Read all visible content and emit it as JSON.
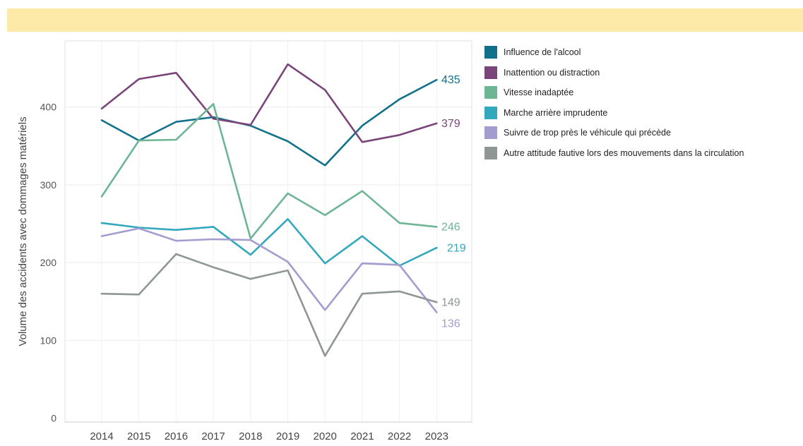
{
  "chart_data": {
    "type": "line",
    "xlabel": "",
    "ylabel": "Volume des accidents avec dommages matériels",
    "categories": [
      "2014",
      "2015",
      "2016",
      "2017",
      "2018",
      "2019",
      "2020",
      "2021",
      "2022",
      "2023"
    ],
    "yticks": [
      "0",
      "100",
      "200",
      "300",
      "400"
    ],
    "ylim": [
      -5,
      485
    ],
    "grid": true,
    "legend_position": "right",
    "series": [
      {
        "name": "Influence de l'alcool",
        "color": "#12718a",
        "values": [
          383,
          357,
          381,
          387,
          376,
          356,
          325,
          376,
          410,
          435
        ],
        "end_label": "435"
      },
      {
        "name": "Inattention ou distraction",
        "color": "#7a4579",
        "values": [
          398,
          436,
          444,
          385,
          377,
          455,
          422,
          355,
          364,
          379
        ],
        "end_label": "379"
      },
      {
        "name": "Vitesse inadaptée",
        "color": "#6db595",
        "values": [
          285,
          357,
          358,
          404,
          231,
          289,
          261,
          292,
          251,
          246
        ],
        "end_label": "246"
      },
      {
        "name": "Marche arrière imprudente",
        "color": "#33a8bc",
        "values": [
          251,
          245,
          242,
          246,
          210,
          256,
          199,
          234,
          196,
          219
        ],
        "end_label": "219"
      },
      {
        "name": "Suivre de trop près le véhicule qui précède",
        "color": "#a39cce",
        "values": [
          234,
          244,
          228,
          230,
          229,
          201,
          139,
          199,
          197,
          136
        ],
        "end_label": "136"
      },
      {
        "name": "Autre attitude fautive lors des mouvements dans la circulation",
        "color": "#8f9696",
        "values": [
          160,
          159,
          211,
          194,
          179,
          190,
          80,
          160,
          163,
          149
        ],
        "end_label": "149"
      }
    ]
  }
}
